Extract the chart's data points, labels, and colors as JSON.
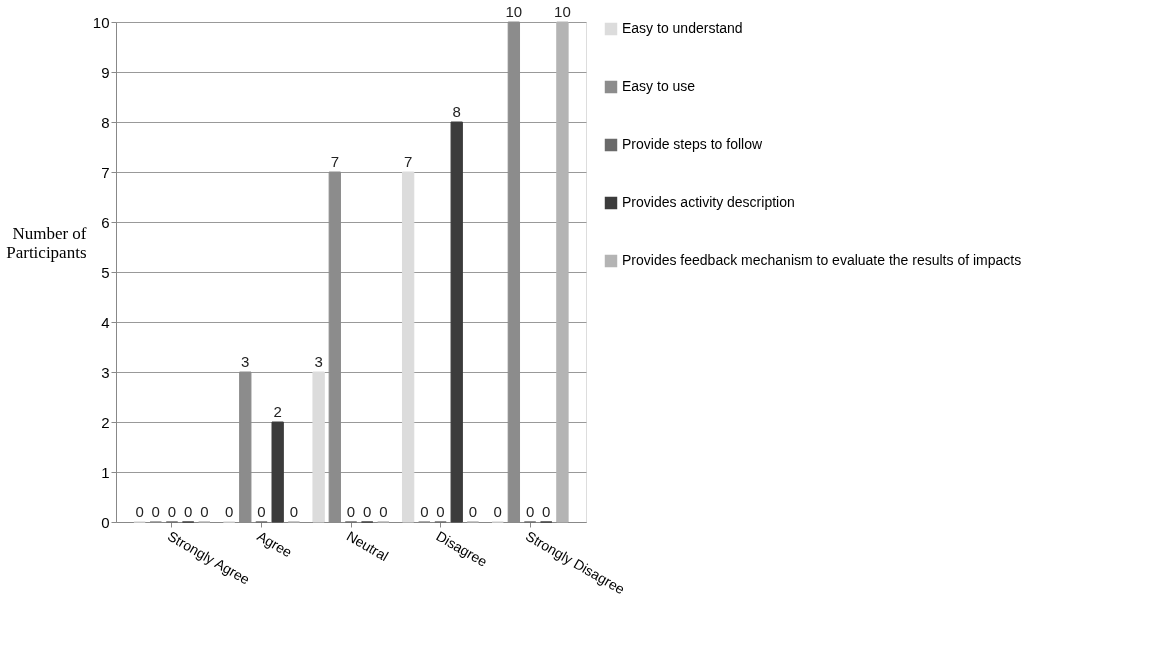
{
  "chart_data": {
    "type": "bar",
    "ylabel": "Number of Participants",
    "categories": [
      "Strongly Agree",
      "Agree",
      "Neutral",
      "Disagree",
      "Strongly Disagree"
    ],
    "series": [
      {
        "name": "Easy to understand",
        "color": "#dcdcdc",
        "values": [
          0,
          0,
          3,
          7,
          0
        ]
      },
      {
        "name": "Easy to use",
        "color": "#8c8c8c",
        "values": [
          0,
          3,
          7,
          0,
          10
        ]
      },
      {
        "name": "Provide steps to follow",
        "color": "#6a6a6a",
        "values": [
          0,
          0,
          0,
          0,
          0
        ]
      },
      {
        "name": "Provides activity description",
        "color": "#3c3c3c",
        "values": [
          0,
          2,
          0,
          8,
          0
        ]
      },
      {
        "name": "Provides feedback mechanism to evaluate the results of impacts",
        "color": "#b4b4b4",
        "values": [
          0,
          0,
          0,
          0,
          10
        ]
      }
    ],
    "ylim": [
      0,
      10
    ],
    "yticks": [
      0,
      1,
      2,
      3,
      4,
      5,
      6,
      7,
      8,
      9,
      10
    ],
    "grid": "y",
    "legend": "right",
    "data_labels": true
  }
}
